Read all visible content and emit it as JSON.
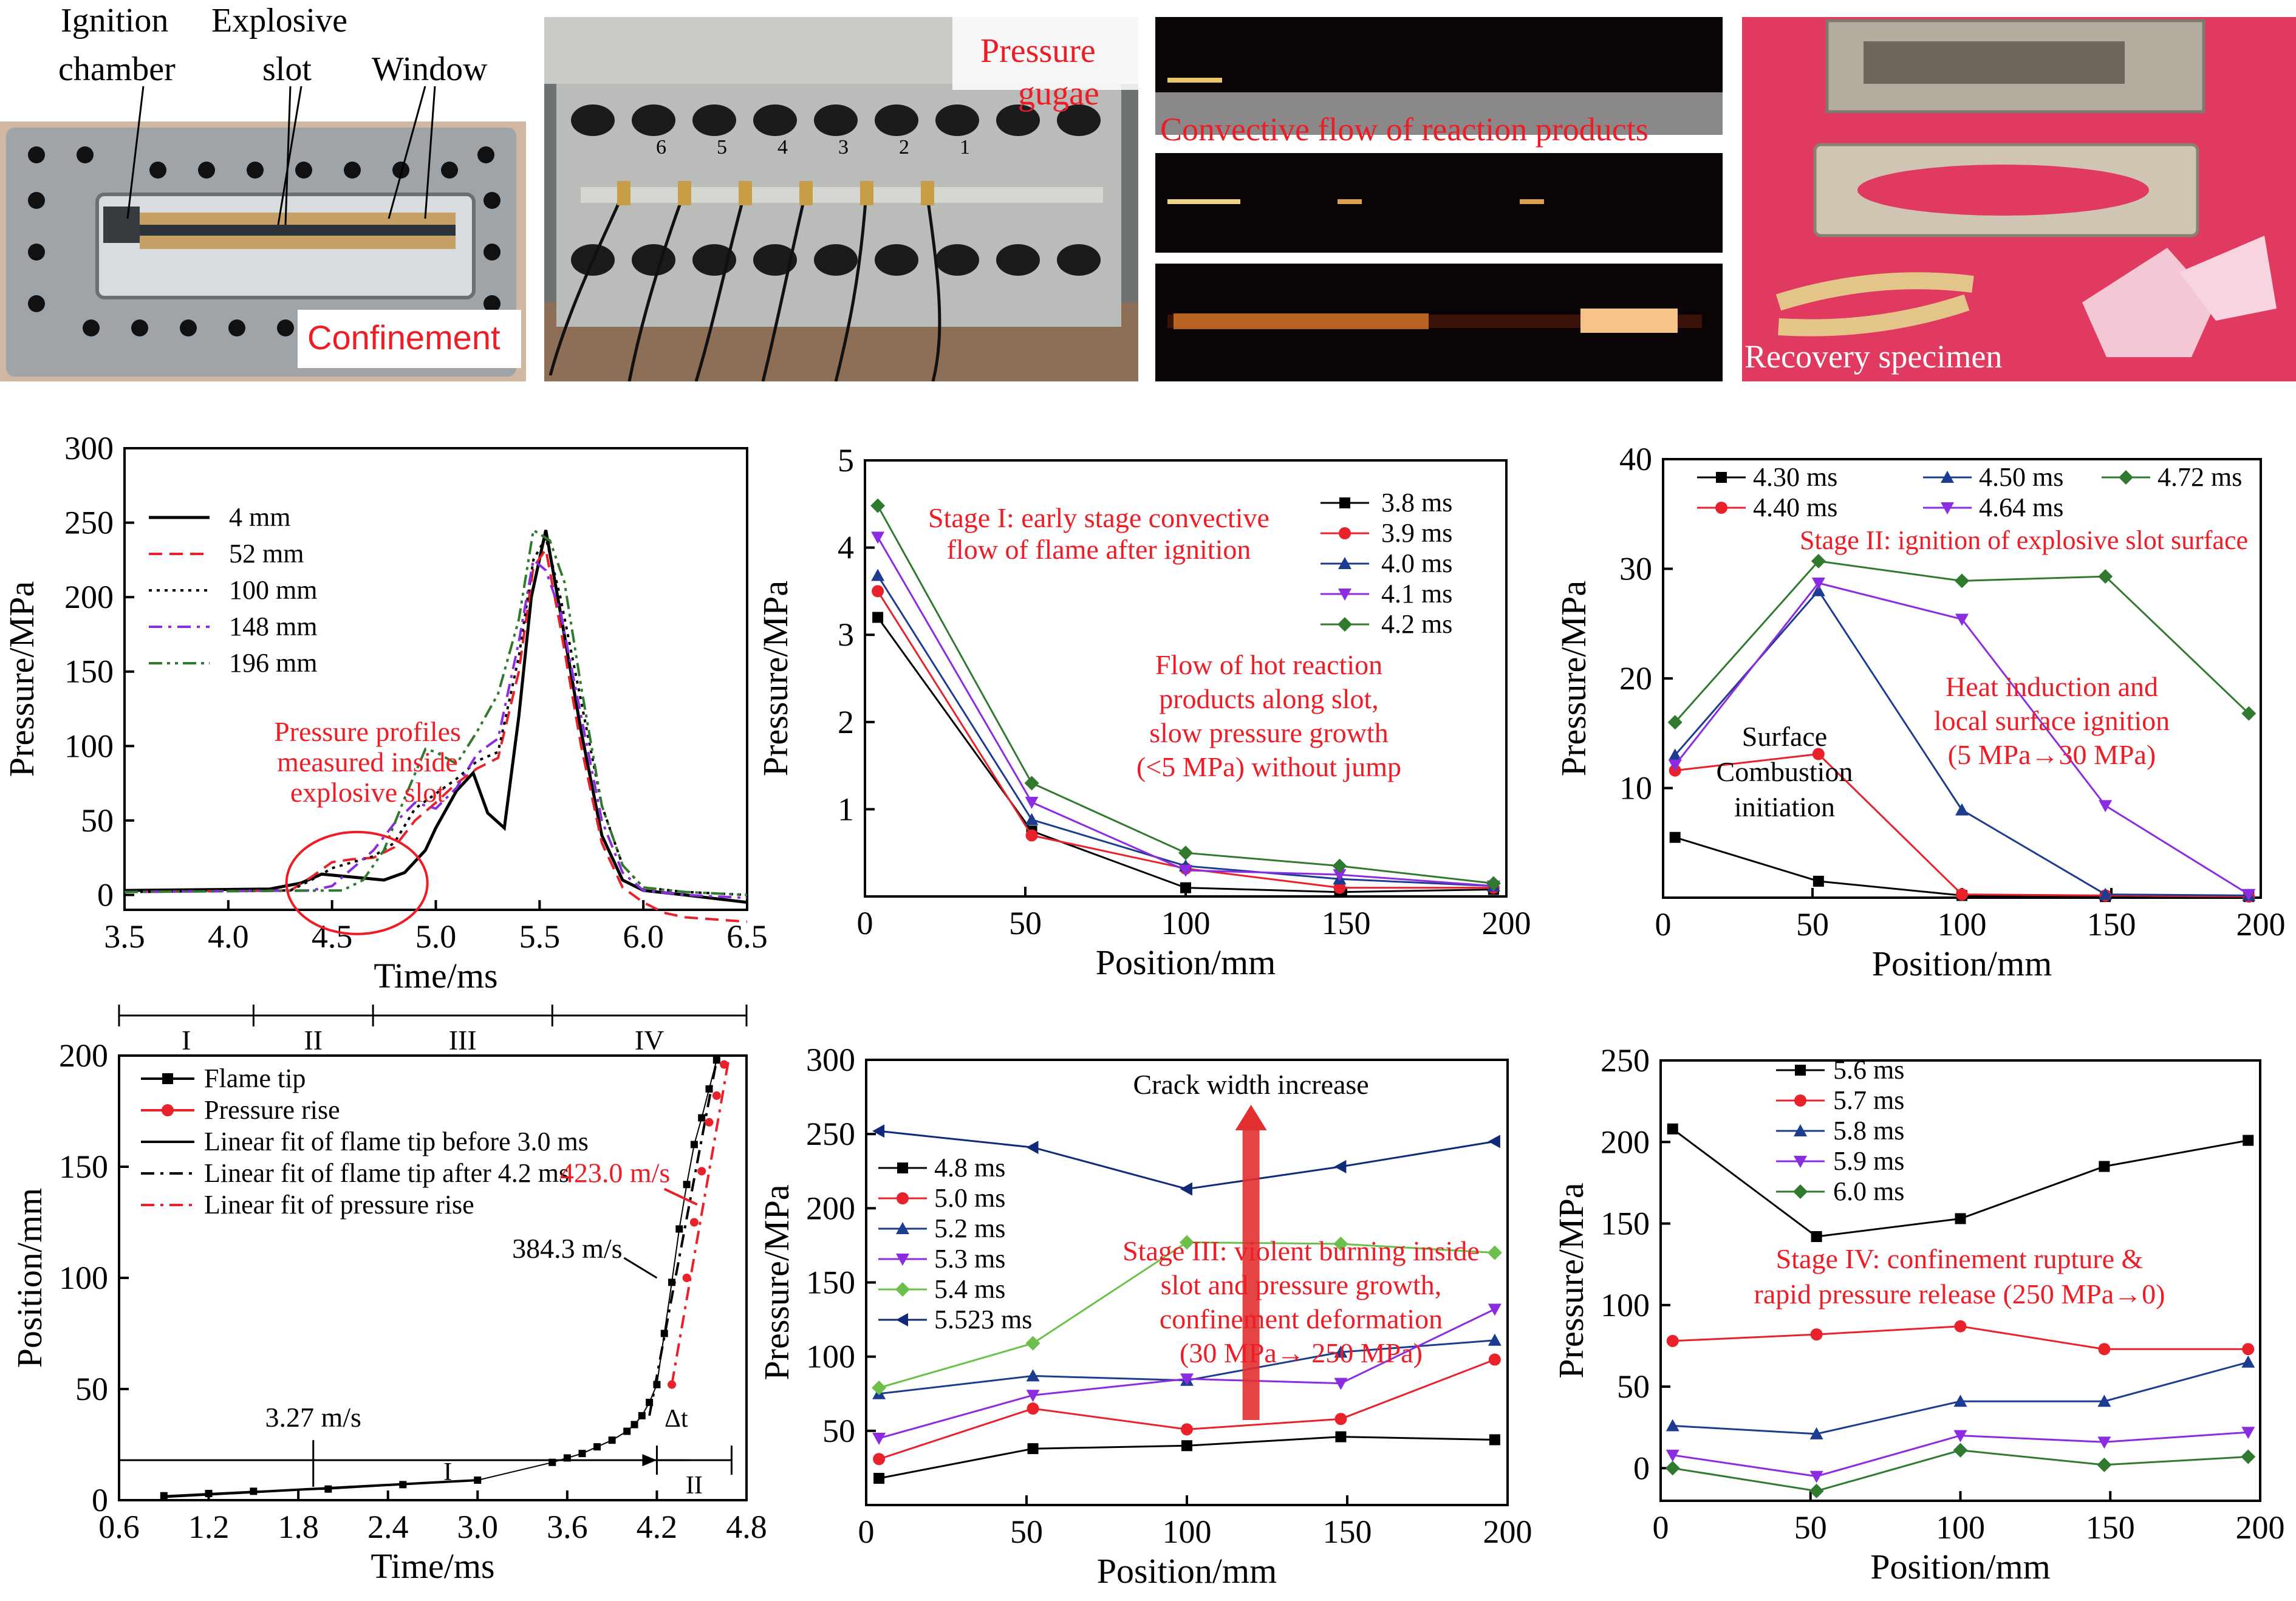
{
  "colors": {
    "red_text": "#ee1c25",
    "black": "#000000",
    "red": "#e8212a",
    "blue": "#1d3c8f",
    "purple": "#8b2be2",
    "green": "#2f7a2f",
    "green_light": "#6cbf4a",
    "navy": "#10297a"
  },
  "photos": {
    "a": {
      "l1": "Ignition",
      "l2": "chamber",
      "l3": "Explosive",
      "l4": "slot",
      "l5": "Window",
      "caption": "Confinement"
    },
    "b": {
      "l1": "Pressure",
      "l2": "gugae",
      "gauge_numbers": [
        "6",
        "5",
        "4",
        "3",
        "2",
        "1"
      ]
    },
    "c": {
      "caption": "Convective flow of reaction products"
    },
    "d": {
      "caption": "Recovery specimen"
    }
  },
  "chart_data": [
    {
      "id": "c1",
      "type": "line",
      "xlabel": "Time/ms",
      "ylabel": "Pressure/MPa",
      "xlim": [
        3.5,
        6.5
      ],
      "ylim": [
        -10,
        300
      ],
      "xticks": [
        "3.5",
        "4.0",
        "4.5",
        "5.0",
        "5.5",
        "6.0",
        "6.5"
      ],
      "xtick_values": [
        3.5,
        4.0,
        4.5,
        5.0,
        5.5,
        6.0,
        6.5
      ],
      "yticks": [
        "0",
        "50",
        "100",
        "150",
        "200",
        "250",
        "300"
      ],
      "ytick_values": [
        0,
        50,
        100,
        150,
        200,
        250,
        300
      ],
      "legend": {
        "position": "top-left"
      },
      "annotations": [
        {
          "text": "Pressure profiles",
          "color": "red"
        },
        {
          "text": "measured inside",
          "color": "red"
        },
        {
          "text": "explosive slot",
          "color": "red"
        }
      ],
      "series": [
        {
          "name": "4 mm",
          "style": "solid",
          "color": "#000000",
          "x": [
            3.5,
            4.2,
            4.35,
            4.45,
            4.6,
            4.75,
            4.85,
            4.95,
            5.0,
            5.1,
            5.18,
            5.25,
            5.33,
            5.4,
            5.46,
            5.53,
            5.6,
            5.7,
            5.8,
            5.9,
            6.0,
            6.2,
            6.5
          ],
          "y": [
            3,
            4,
            8,
            14,
            12,
            10,
            15,
            30,
            45,
            70,
            82,
            55,
            45,
            120,
            200,
            245,
            190,
            110,
            40,
            10,
            3,
            0,
            -5
          ]
        },
        {
          "name": "52 mm",
          "style": "dash",
          "color": "#e8212a",
          "x": [
            3.5,
            4.3,
            4.4,
            4.5,
            4.6,
            4.7,
            4.8,
            4.9,
            5.0,
            5.1,
            5.2,
            5.3,
            5.4,
            5.47,
            5.53,
            5.6,
            5.7,
            5.8,
            5.9,
            6.0,
            6.1,
            6.2,
            6.5
          ],
          "y": [
            2,
            3,
            12,
            22,
            24,
            25,
            32,
            50,
            62,
            75,
            85,
            92,
            150,
            220,
            232,
            180,
            100,
            35,
            5,
            -5,
            -12,
            -15,
            -18
          ]
        },
        {
          "name": "100 mm",
          "style": "dot",
          "color": "#000000",
          "x": [
            3.5,
            4.3,
            4.4,
            4.5,
            4.6,
            4.7,
            4.8,
            4.9,
            5.0,
            5.1,
            5.2,
            5.3,
            5.4,
            5.47,
            5.53,
            5.6,
            5.7,
            5.8,
            5.9,
            6.0,
            6.2,
            6.5
          ],
          "y": [
            2,
            3,
            10,
            18,
            22,
            26,
            35,
            58,
            68,
            78,
            90,
            96,
            160,
            225,
            240,
            200,
            130,
            60,
            20,
            5,
            2,
            0
          ]
        },
        {
          "name": "148 mm",
          "style": "dashdot",
          "color": "#8b2be2",
          "x": [
            3.5,
            4.4,
            4.5,
            4.6,
            4.7,
            4.8,
            4.9,
            5.0,
            5.1,
            5.2,
            5.3,
            5.4,
            5.47,
            5.53,
            5.6,
            5.7,
            5.8,
            5.9,
            6.0,
            6.2,
            6.5
          ],
          "y": [
            2,
            3,
            6,
            18,
            30,
            48,
            62,
            58,
            72,
            95,
            105,
            170,
            225,
            218,
            190,
            120,
            50,
            15,
            3,
            0,
            -2
          ]
        },
        {
          "name": "196 mm",
          "style": "dashdotdot",
          "color": "#2f7a2f",
          "x": [
            3.5,
            4.55,
            4.65,
            4.75,
            4.85,
            4.95,
            5.0,
            5.1,
            5.2,
            5.3,
            5.4,
            5.47,
            5.55,
            5.62,
            5.7,
            5.8,
            5.9,
            6.0,
            6.2,
            6.5
          ],
          "y": [
            2,
            3,
            10,
            30,
            65,
            98,
            96,
            88,
            110,
            135,
            185,
            245,
            238,
            210,
            140,
            60,
            20,
            5,
            2,
            0
          ]
        }
      ]
    },
    {
      "id": "c2",
      "type": "line",
      "xlabel": "Position/mm",
      "ylabel": "Pressure/MPa",
      "xlim": [
        0,
        200
      ],
      "ylim": [
        0,
        5
      ],
      "xticks": [
        "0",
        "50",
        "100",
        "150",
        "200"
      ],
      "xtick_values": [
        0,
        50,
        100,
        150,
        200
      ],
      "yticks": [
        "1",
        "2",
        "3",
        "4",
        "5"
      ],
      "ytick_values": [
        1,
        2,
        3,
        4,
        5
      ],
      "legend": {
        "position": "top-right"
      },
      "annotations": [
        {
          "text": "Stage I: early stage convective",
          "color": "red"
        },
        {
          "text": "flow of  flame after ignition",
          "color": "red"
        },
        {
          "text": "Flow of hot reaction",
          "color": "red"
        },
        {
          "text": "products along slot,",
          "color": "red"
        },
        {
          "text": "slow pressure growth",
          "color": "red"
        },
        {
          "text": "(<5 MPa)  without jump",
          "color": "red"
        }
      ],
      "x": [
        4,
        52,
        100,
        148,
        196
      ],
      "series": [
        {
          "name": "3.8 ms",
          "marker": "square",
          "color": "#000000",
          "values": [
            3.2,
            0.75,
            0.1,
            0.05,
            0.08
          ]
        },
        {
          "name": "3.9 ms",
          "marker": "circle",
          "color": "#e8212a",
          "values": [
            3.5,
            0.7,
            0.32,
            0.1,
            0.1
          ]
        },
        {
          "name": "4.0 ms",
          "marker": "triangle-up",
          "color": "#1d3c8f",
          "values": [
            3.68,
            0.88,
            0.35,
            0.2,
            0.12
          ]
        },
        {
          "name": "4.1 ms",
          "marker": "triangle-down",
          "color": "#8b2be2",
          "values": [
            4.12,
            1.08,
            0.3,
            0.25,
            0.12
          ]
        },
        {
          "name": "4.2 ms",
          "marker": "diamond",
          "color": "#2f7a2f",
          "values": [
            4.48,
            1.3,
            0.5,
            0.35,
            0.15
          ]
        }
      ]
    },
    {
      "id": "c3",
      "type": "line",
      "xlabel": "Position/mm",
      "ylabel": "Pressure/MPa",
      "xlim": [
        0,
        200
      ],
      "ylim": [
        0,
        40
      ],
      "xticks": [
        "0",
        "50",
        "100",
        "150",
        "200"
      ],
      "xtick_values": [
        0,
        50,
        100,
        150,
        200
      ],
      "yticks": [
        "10",
        "20",
        "30",
        "40"
      ],
      "ytick_values": [
        10,
        20,
        30,
        40
      ],
      "legend": {
        "position": "top"
      },
      "annotations": [
        {
          "text": "Stage II: ignition of explosive slot surface",
          "color": "red"
        },
        {
          "text": "Heat induction and",
          "color": "red"
        },
        {
          "text": "local surface ignition",
          "color": "red"
        },
        {
          "text": "(5 MPa→30 MPa)",
          "color": "red"
        },
        {
          "text": "Surface",
          "color": "black"
        },
        {
          "text": "Combustion",
          "color": "black"
        },
        {
          "text": "initiation",
          "color": "black"
        }
      ],
      "x": [
        4,
        52,
        100,
        148,
        196
      ],
      "series": [
        {
          "name": "4.30 ms",
          "marker": "square",
          "color": "#000000",
          "values": [
            5.5,
            1.5,
            0.2,
            0.1,
            0.1
          ]
        },
        {
          "name": "4.40 ms",
          "marker": "circle",
          "color": "#e8212a",
          "values": [
            11.6,
            13.1,
            0.3,
            0.2,
            0.1
          ]
        },
        {
          "name": "4.50 ms",
          "marker": "triangle-up",
          "color": "#1d3c8f",
          "values": [
            13.0,
            28.0,
            8.0,
            0.3,
            0.2
          ]
        },
        {
          "name": "4.64 ms",
          "marker": "triangle-down",
          "color": "#8b2be2",
          "values": [
            12.1,
            28.7,
            25.4,
            8.4,
            0.3
          ]
        },
        {
          "name": "4.72 ms",
          "marker": "diamond",
          "color": "#2f7a2f",
          "values": [
            16.0,
            30.7,
            28.9,
            29.3,
            16.8
          ]
        }
      ]
    },
    {
      "id": "c4",
      "type": "scatter",
      "xlabel": "Time/ms",
      "ylabel": "Position/mm",
      "xlim": [
        0.6,
        4.8
      ],
      "ylim": [
        0,
        200
      ],
      "xticks": [
        "0.6",
        "1.2",
        "1.8",
        "2.4",
        "3.0",
        "3.6",
        "4.2",
        "4.8"
      ],
      "xtick_values": [
        0.6,
        1.2,
        1.8,
        2.4,
        3.0,
        3.6,
        4.2,
        4.8
      ],
      "yticks": [
        "0",
        "50",
        "100",
        "150",
        "200"
      ],
      "ytick_values": [
        0,
        50,
        100,
        150,
        200
      ],
      "legend": {
        "position": "top-left"
      },
      "stages": [
        "I",
        "II",
        "III",
        "IV"
      ],
      "stage_x": [
        0.6,
        1.5,
        2.3,
        3.5,
        4.8
      ],
      "annotations": [
        {
          "text": "423.0 m/s",
          "color": "red"
        },
        {
          "text": "384.3 m/s",
          "color": "black"
        },
        {
          "text": "3.27 m/s",
          "color": "black"
        },
        {
          "text": "Δt",
          "color": "black"
        },
        {
          "text": "I",
          "color": "black"
        },
        {
          "text": "II",
          "color": "black"
        }
      ],
      "series": [
        {
          "name": "Flame tip",
          "marker": "square",
          "color": "#000000",
          "x": [
            0.9,
            1.2,
            1.5,
            2.0,
            2.5,
            3.0,
            3.5,
            3.6,
            3.7,
            3.8,
            3.9,
            4.0,
            4.05,
            4.1,
            4.15,
            4.2,
            4.25,
            4.3,
            4.35,
            4.4,
            4.45,
            4.5,
            4.55,
            4.6
          ],
          "y": [
            2,
            3,
            4,
            5,
            7,
            9,
            17,
            19,
            21,
            24,
            27,
            31,
            34,
            38,
            44,
            52,
            75,
            98,
            122,
            142,
            160,
            172,
            185,
            198
          ]
        },
        {
          "name": "Pressure rise",
          "marker": "circle",
          "color": "#e8212a",
          "x": [
            4.3,
            4.4,
            4.45,
            4.5,
            4.55,
            4.6,
            4.65
          ],
          "y": [
            52,
            100,
            125,
            148,
            170,
            182,
            196
          ]
        },
        {
          "name": "Linear fit of flame tip before 3.0 ms",
          "style": "solid",
          "color": "#000000",
          "x": [
            0.9,
            3.0
          ],
          "y": [
            1.5,
            9
          ]
        },
        {
          "name": "Linear fit of flame tip after 4.2 ms",
          "style": "dashdot",
          "color": "#000000",
          "x": [
            4.15,
            4.6
          ],
          "y": [
            38,
            198
          ]
        },
        {
          "name": "Linear fit of pressure rise",
          "style": "dashdot",
          "color": "#e8212a",
          "x": [
            4.3,
            4.68
          ],
          "y": [
            52,
            198
          ]
        }
      ]
    },
    {
      "id": "c5",
      "type": "line",
      "xlabel": "Position/mm",
      "ylabel": "Pressure/MPa",
      "xlim": [
        0,
        200
      ],
      "ylim": [
        0,
        300
      ],
      "xticks": [
        "0",
        "50",
        "100",
        "150",
        "200"
      ],
      "xtick_values": [
        0,
        50,
        100,
        150,
        200
      ],
      "yticks": [
        "50",
        "100",
        "150",
        "200",
        "250",
        "300"
      ],
      "ytick_values": [
        50,
        100,
        150,
        200,
        250,
        300
      ],
      "legend": {
        "position": "left"
      },
      "annotations": [
        {
          "text": "Crack width increase",
          "color": "black"
        },
        {
          "text": "Stage III: violent burning inside",
          "color": "red"
        },
        {
          "text": "slot and pressure growth,",
          "color": "red"
        },
        {
          "text": "confinement deformation",
          "color": "red"
        },
        {
          "text": "(30 MPa→ 250 MPa)",
          "color": "red"
        }
      ],
      "x": [
        4,
        52,
        100,
        148,
        196
      ],
      "series": [
        {
          "name": "4.8 ms",
          "marker": "square",
          "color": "#000000",
          "values": [
            18,
            38,
            40,
            46,
            44
          ]
        },
        {
          "name": "5.0 ms",
          "marker": "circle",
          "color": "#e8212a",
          "values": [
            31,
            65,
            51,
            58,
            98
          ]
        },
        {
          "name": "5.2 ms",
          "marker": "triangle-up",
          "color": "#1d3c8f",
          "values": [
            75,
            87,
            84,
            103,
            111
          ]
        },
        {
          "name": "5.3 ms",
          "marker": "triangle-down",
          "color": "#8b2be2",
          "values": [
            45,
            74,
            85,
            82,
            132
          ]
        },
        {
          "name": "5.4 ms",
          "marker": "diamond",
          "color": "#6cbf4a",
          "values": [
            79,
            109,
            177,
            176,
            170
          ]
        },
        {
          "name": "5.523 ms",
          "marker": "triangle-left",
          "color": "#10297a",
          "values": [
            252,
            241,
            213,
            228,
            245
          ]
        }
      ]
    },
    {
      "id": "c6",
      "type": "line",
      "xlabel": "Position/mm",
      "ylabel": "Pressure/MPa",
      "xlim": [
        0,
        200
      ],
      "ylim": [
        -20,
        250
      ],
      "xticks": [
        "0",
        "50",
        "100",
        "150",
        "200"
      ],
      "xtick_values": [
        0,
        50,
        100,
        150,
        200
      ],
      "yticks": [
        "0",
        "50",
        "100",
        "150",
        "200",
        "250"
      ],
      "ytick_values": [
        0,
        50,
        100,
        150,
        200,
        250
      ],
      "legend": {
        "position": "top-left"
      },
      "annotations": [
        {
          "text": "Stage IV: confinement rupture &",
          "color": "red"
        },
        {
          "text": "rapid pressure release (250 MPa→0)",
          "color": "red"
        }
      ],
      "x": [
        4,
        52,
        100,
        148,
        196
      ],
      "series": [
        {
          "name": "5.6 ms",
          "marker": "square",
          "color": "#000000",
          "values": [
            208,
            142,
            153,
            185,
            201
          ]
        },
        {
          "name": "5.7 ms",
          "marker": "circle",
          "color": "#e8212a",
          "values": [
            78,
            82,
            87,
            73,
            73
          ]
        },
        {
          "name": "5.8 ms",
          "marker": "triangle-up",
          "color": "#1d3c8f",
          "values": [
            26,
            21,
            41,
            41,
            65
          ]
        },
        {
          "name": "5.9 ms",
          "marker": "triangle-down",
          "color": "#8b2be2",
          "values": [
            8,
            -5,
            20,
            16,
            22
          ]
        },
        {
          "name": "6.0 ms",
          "marker": "diamond",
          "color": "#2f7a2f",
          "values": [
            0,
            -14,
            11,
            2,
            7
          ]
        }
      ]
    }
  ]
}
